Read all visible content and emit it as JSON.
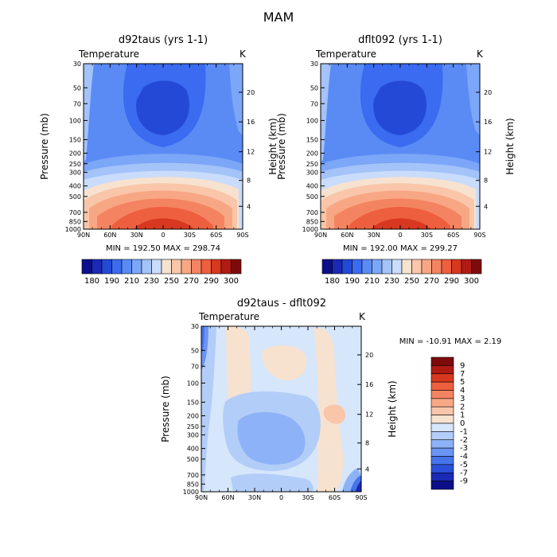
{
  "figure": {
    "title": "MAM"
  },
  "common": {
    "variable_label": "Temperature",
    "units_label": "K",
    "y_left_label": "Pressure (mb)",
    "y_right_label": "Height (km)",
    "x_ticks": [
      "90N",
      "60N",
      "30N",
      "0",
      "30S",
      "60S",
      "90S"
    ],
    "pressure_ticks": [
      "30",
      "50",
      "70",
      "100",
      "150",
      "200",
      "250",
      "300",
      "400",
      "500",
      "700",
      "850",
      "1000"
    ],
    "height_ticks": [
      "20",
      "16",
      "12",
      "8",
      "4"
    ]
  },
  "chart_data": [
    {
      "type": "heatmap",
      "title": "d92taus (yrs 1-1)",
      "stats": "MIN = 192.50   MAX = 298.74",
      "x": [
        90,
        60,
        30,
        0,
        -30,
        -60,
        -90
      ],
      "pressure_levels_mb": [
        30,
        50,
        70,
        100,
        150,
        200,
        250,
        300,
        400,
        500,
        700,
        850,
        1000
      ],
      "height_km_ticks": [
        20,
        16,
        12,
        8,
        4
      ],
      "colorbar_labels": [
        "180",
        "190",
        "210",
        "230",
        "250",
        "270",
        "290",
        "300"
      ],
      "colorbar_colors": [
        "#0c0f8a",
        "#1a2ab5",
        "#2449d6",
        "#3a6bf0",
        "#5a8bf5",
        "#7ca6f7",
        "#a3c3f9",
        "#c9dcfb",
        "#f7e2d0",
        "#f9c6a9",
        "#f8a784",
        "#f48461",
        "#ee5f3f",
        "#d7381f",
        "#b01b13",
        "#7d0b0b"
      ]
    },
    {
      "type": "heatmap",
      "title": "dflt092 (yrs 1-1)",
      "stats": "MIN = 192.00   MAX = 299.27",
      "x": [
        90,
        60,
        30,
        0,
        -30,
        -60,
        -90
      ],
      "pressure_levels_mb": [
        30,
        50,
        70,
        100,
        150,
        200,
        250,
        300,
        400,
        500,
        700,
        850,
        1000
      ],
      "height_km_ticks": [
        20,
        16,
        12,
        8,
        4
      ],
      "colorbar_labels": [
        "180",
        "190",
        "210",
        "230",
        "250",
        "270",
        "290",
        "300"
      ],
      "colorbar_colors": [
        "#0c0f8a",
        "#1a2ab5",
        "#2449d6",
        "#3a6bf0",
        "#5a8bf5",
        "#7ca6f7",
        "#a3c3f9",
        "#c9dcfb",
        "#f7e2d0",
        "#f9c6a9",
        "#f8a784",
        "#f48461",
        "#ee5f3f",
        "#d7381f",
        "#b01b13",
        "#7d0b0b"
      ]
    },
    {
      "type": "heatmap",
      "title": "d92taus - dflt092",
      "stats": "MIN = -10.91   MAX =    2.19",
      "x": [
        90,
        60,
        30,
        0,
        -30,
        -60,
        -90
      ],
      "pressure_levels_mb": [
        30,
        50,
        70,
        100,
        150,
        200,
        250,
        300,
        400,
        500,
        700,
        850,
        1000
      ],
      "height_km_ticks": [
        20,
        16,
        12,
        8,
        4
      ],
      "colorbar_labels": [
        "9",
        "7",
        "5",
        "4",
        "3",
        "2",
        "1",
        "0",
        "-1",
        "-2",
        "-3",
        "-4",
        "-5",
        "-7",
        "-9"
      ],
      "colorbar_colors": [
        "#7d0b0b",
        "#b01b13",
        "#d7381f",
        "#ee5f3f",
        "#f48461",
        "#f8a784",
        "#f9c6a9",
        "#f7e2d0",
        "#d6e6fb",
        "#b3cdf9",
        "#8eb2f7",
        "#6b95f4",
        "#4674ec",
        "#2a50db",
        "#1a2ab5",
        "#0c0f8a"
      ]
    }
  ]
}
